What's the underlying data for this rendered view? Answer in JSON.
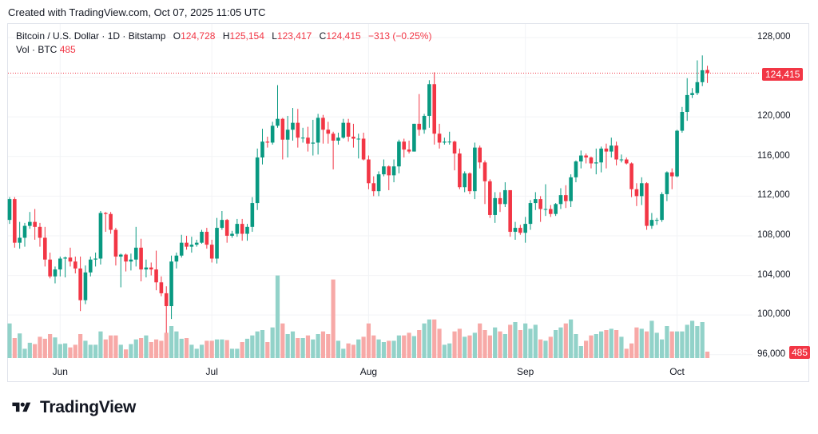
{
  "header": {
    "created": "Created with TradingView.com, Oct 07, 2025 11:05 UTC"
  },
  "legend": {
    "symbol": "Bitcoin / U.S. Dollar · 1D · Bitstamp",
    "o_label": "O",
    "o": "124,728",
    "h_label": "H",
    "h": "125,154",
    "l_label": "L",
    "l": "123,417",
    "c_label": "C",
    "c": "124,415",
    "change": "−313 (−0.25%)",
    "vol_label": "Vol · BTC",
    "vol": "485"
  },
  "last_price_label": "124,415",
  "last_volume_label": "485",
  "logo": {
    "text": "TradingView"
  },
  "colors": {
    "up": "#089981",
    "down": "#f23645",
    "vol_up": "#92d2c9",
    "vol_down": "#f7a9a7",
    "grid": "#f2f3f6"
  },
  "chart_data": {
    "type": "candlestick",
    "title": "Bitcoin / U.S. Dollar · 1D · Bitstamp",
    "start_date": "2025-05-22",
    "end_date": "2025-10-07",
    "x_ticks": [
      {
        "label": "Jun",
        "date": "2025-06-01"
      },
      {
        "label": "Jul",
        "date": "2025-07-01"
      },
      {
        "label": "Aug",
        "date": "2025-08-01"
      },
      {
        "label": "Sep",
        "date": "2025-09-01"
      },
      {
        "label": "Oct",
        "date": "2025-10-01"
      }
    ],
    "y_ticks": [
      128000,
      124000,
      120000,
      116000,
      112000,
      108000,
      104000,
      100000,
      96000
    ],
    "y_tick_labels": [
      "128,000",
      "",
      "120,000",
      "116,000",
      "112,000",
      "108,000",
      "104,000",
      "100,000",
      "96,000"
    ],
    "ylim": [
      96000,
      128000
    ],
    "grid": true,
    "ohlc_fields": [
      "open",
      "high",
      "low",
      "close"
    ],
    "ohlc": [
      [
        109600,
        111900,
        109200,
        111700
      ],
      [
        111700,
        111900,
        106800,
        107300
      ],
      [
        107300,
        109400,
        106700,
        107800
      ],
      [
        107800,
        109300,
        106900,
        109000
      ],
      [
        109000,
        110400,
        108700,
        109400
      ],
      [
        109400,
        110700,
        107600,
        108900
      ],
      [
        108900,
        109300,
        106900,
        107800
      ],
      [
        107800,
        108900,
        104900,
        105600
      ],
      [
        105600,
        106300,
        103700,
        103900
      ],
      [
        103900,
        104900,
        103200,
        104600
      ],
      [
        104600,
        105900,
        103900,
        105700
      ],
      [
        105700,
        105900,
        103800,
        105800
      ],
      [
        105800,
        106800,
        104900,
        105400
      ],
      [
        105400,
        105900,
        104200,
        104700
      ],
      [
        104700,
        105900,
        100400,
        101500
      ],
      [
        101500,
        105000,
        101100,
        104300
      ],
      [
        104300,
        105900,
        103900,
        105600
      ],
      [
        105600,
        106300,
        104900,
        105700
      ],
      [
        105700,
        110500,
        105100,
        110300
      ],
      [
        110300,
        110400,
        108400,
        110200
      ],
      [
        110200,
        110400,
        108200,
        108600
      ],
      [
        108600,
        108800,
        105000,
        105900
      ],
      [
        105900,
        106200,
        102800,
        106100
      ],
      [
        106100,
        106200,
        104400,
        105400
      ],
      [
        105400,
        106200,
        104500,
        105600
      ],
      [
        105600,
        108900,
        104900,
        106800
      ],
      [
        106800,
        107700,
        103400,
        104600
      ],
      [
        104600,
        105600,
        103800,
        104800
      ],
      [
        104800,
        105300,
        104000,
        104600
      ],
      [
        104600,
        106500,
        102500,
        103300
      ],
      [
        103300,
        103900,
        101900,
        102200
      ],
      [
        102200,
        102900,
        98200,
        100900
      ],
      [
        100900,
        106000,
        99600,
        105400
      ],
      [
        105400,
        106300,
        104700,
        106000
      ],
      [
        106000,
        108100,
        105800,
        107300
      ],
      [
        107300,
        108000,
        106600,
        106900
      ],
      [
        106900,
        107900,
        106300,
        107100
      ],
      [
        107100,
        107600,
        106900,
        107300
      ],
      [
        107300,
        108600,
        107200,
        108400
      ],
      [
        108400,
        108800,
        106700,
        107100
      ],
      [
        107100,
        107600,
        105300,
        105700
      ],
      [
        105700,
        109800,
        105200,
        108800
      ],
      [
        108800,
        110500,
        108600,
        109600
      ],
      [
        109600,
        109700,
        107300,
        108000
      ],
      [
        108000,
        108500,
        107800,
        108200
      ],
      [
        108200,
        109700,
        107900,
        109200
      ],
      [
        109200,
        109700,
        107500,
        108200
      ],
      [
        108200,
        109200,
        107500,
        108900
      ],
      [
        108900,
        111900,
        108400,
        111300
      ],
      [
        111300,
        116800,
        110600,
        115900
      ],
      [
        115900,
        118800,
        115200,
        117500
      ],
      [
        117500,
        118000,
        116900,
        117400
      ],
      [
        117400,
        119500,
        117200,
        119100
      ],
      [
        119100,
        123200,
        118900,
        119800
      ],
      [
        119800,
        119900,
        115700,
        117700
      ],
      [
        117700,
        120100,
        115900,
        118700
      ],
      [
        118700,
        120900,
        117600,
        119400
      ],
      [
        119400,
        120800,
        116900,
        117900
      ],
      [
        117900,
        118900,
        117400,
        117900
      ],
      [
        117900,
        119000,
        116500,
        117300
      ],
      [
        117300,
        119700,
        116100,
        117400
      ],
      [
        117400,
        120300,
        116200,
        119900
      ],
      [
        119900,
        120200,
        117300,
        118700
      ],
      [
        118700,
        119500,
        117300,
        118300
      ],
      [
        118300,
        118500,
        114700,
        117600
      ],
      [
        117600,
        118400,
        117200,
        117900
      ],
      [
        117900,
        119800,
        117800,
        119400
      ],
      [
        119400,
        119800,
        117500,
        118000
      ],
      [
        118000,
        119300,
        116900,
        117800
      ],
      [
        117800,
        118300,
        115800,
        117800
      ],
      [
        117800,
        118400,
        115600,
        115700
      ],
      [
        115700,
        116100,
        112700,
        113300
      ],
      [
        113300,
        114000,
        112000,
        112500
      ],
      [
        112500,
        114500,
        112000,
        114200
      ],
      [
        114200,
        115700,
        114000,
        115000
      ],
      [
        115000,
        115100,
        112600,
        114100
      ],
      [
        114100,
        115700,
        113400,
        115000
      ],
      [
        115000,
        117700,
        114300,
        117500
      ],
      [
        117500,
        117800,
        115900,
        116700
      ],
      [
        116700,
        117600,
        116300,
        116500
      ],
      [
        116500,
        119300,
        116500,
        119300
      ],
      [
        119300,
        122300,
        118100,
        118700
      ],
      [
        118700,
        120300,
        118300,
        120100
      ],
      [
        120100,
        123700,
        118900,
        123300
      ],
      [
        123300,
        124500,
        117200,
        118300
      ],
      [
        118300,
        119300,
        116800,
        117400
      ],
      [
        117400,
        117900,
        117200,
        117500
      ],
      [
        117500,
        118500,
        117200,
        117500
      ],
      [
        117500,
        117600,
        114600,
        116300
      ],
      [
        116300,
        116800,
        112700,
        112900
      ],
      [
        112900,
        114500,
        112400,
        114300
      ],
      [
        114300,
        114400,
        112200,
        112500
      ],
      [
        112500,
        117400,
        111700,
        116900
      ],
      [
        116900,
        117100,
        114800,
        115400
      ],
      [
        115400,
        115600,
        111200,
        113500
      ],
      [
        113500,
        113700,
        109800,
        110100
      ],
      [
        110100,
        112400,
        109300,
        111800
      ],
      [
        111800,
        112400,
        110400,
        111200
      ],
      [
        111200,
        113400,
        110900,
        112600
      ],
      [
        112600,
        112600,
        107900,
        108400
      ],
      [
        108400,
        109400,
        107600,
        108800
      ],
      [
        108800,
        109100,
        108100,
        108300
      ],
      [
        108300,
        109900,
        107300,
        109200
      ],
      [
        109200,
        111600,
        108600,
        111300
      ],
      [
        111300,
        112400,
        110600,
        111700
      ],
      [
        111700,
        112000,
        109400,
        110700
      ],
      [
        110700,
        113200,
        110000,
        110700
      ],
      [
        110700,
        111100,
        109900,
        110200
      ],
      [
        110200,
        111300,
        110000,
        111200
      ],
      [
        111200,
        112800,
        110700,
        112100
      ],
      [
        112100,
        113100,
        110800,
        111500
      ],
      [
        111500,
        114200,
        110900,
        113900
      ],
      [
        113900,
        115600,
        113400,
        115500
      ],
      [
        115500,
        116600,
        114800,
        116100
      ],
      [
        116100,
        116300,
        115300,
        115900
      ],
      [
        115900,
        116000,
        114800,
        115300
      ],
      [
        115300,
        116800,
        114200,
        115400
      ],
      [
        115400,
        117000,
        114400,
        116800
      ],
      [
        116800,
        117300,
        114800,
        116500
      ],
      [
        116500,
        117900,
        115900,
        117100
      ],
      [
        117100,
        117500,
        115100,
        115700
      ],
      [
        115700,
        116200,
        115400,
        115700
      ],
      [
        115700,
        115900,
        115200,
        115300
      ],
      [
        115300,
        115400,
        111900,
        112700
      ],
      [
        112700,
        113300,
        111000,
        112000
      ],
      [
        112000,
        113900,
        111100,
        113300
      ],
      [
        113300,
        113400,
        108600,
        109000
      ],
      [
        109000,
        110300,
        108700,
        109600
      ],
      [
        109600,
        109800,
        109100,
        109600
      ],
      [
        109600,
        112400,
        109400,
        112200
      ],
      [
        112200,
        114500,
        111500,
        114400
      ],
      [
        114400,
        114800,
        112700,
        114000
      ],
      [
        114000,
        118700,
        113900,
        118600
      ],
      [
        118600,
        121000,
        118400,
        120500
      ],
      [
        120500,
        123900,
        119600,
        122200
      ],
      [
        122200,
        122900,
        121900,
        122400
      ],
      [
        122400,
        125700,
        122200,
        123500
      ],
      [
        123500,
        126200,
        123100,
        124700
      ],
      [
        124728,
        125154,
        123417,
        124415
      ]
    ],
    "volume_unit": "BTC",
    "volume": [
      2600,
      1500,
      1850,
      700,
      1150,
      1050,
      1600,
      1450,
      1800,
      1550,
      1050,
      1100,
      800,
      1000,
      1800,
      1300,
      1000,
      1000,
      2000,
      1400,
      1700,
      1700,
      1000,
      650,
      1050,
      1400,
      1500,
      1700,
      1200,
      1400,
      1300,
      1900,
      2400,
      2000,
      1450,
      1500,
      1000,
      700,
      1000,
      1300,
      1300,
      1400,
      1400,
      1350,
      700,
      700,
      1200,
      1450,
      1700,
      2000,
      2100,
      1200,
      2300,
      6200,
      2600,
      1800,
      2000,
      1500,
      1500,
      1700,
      1400,
      1800,
      2000,
      1800,
      5900,
      1300,
      700,
      1100,
      1000,
      1400,
      1600,
      2600,
      1700,
      1400,
      1200,
      1300,
      1300,
      1700,
      1700,
      1900,
      1650,
      2100,
      2600,
      2900,
      2900,
      2200,
      1000,
      1100,
      2000,
      2200,
      1600,
      1700,
      1900,
      2600,
      2100,
      1700,
      2300,
      2000,
      1800,
      2500,
      2700,
      2100,
      2600,
      2200,
      2500,
      1400,
      1300,
      1600,
      2100,
      2300,
      2600,
      2900,
      1800,
      900,
      1300,
      1700,
      1800,
      2000,
      2100,
      2200,
      2100,
      1600,
      700,
      1100,
      2300,
      2200,
      2000,
      2800,
      1900,
      1400,
      2400,
      2000,
      2000,
      2000,
      2500,
      2800,
      2400,
      2700,
      485
    ],
    "last_price": 124415
  }
}
